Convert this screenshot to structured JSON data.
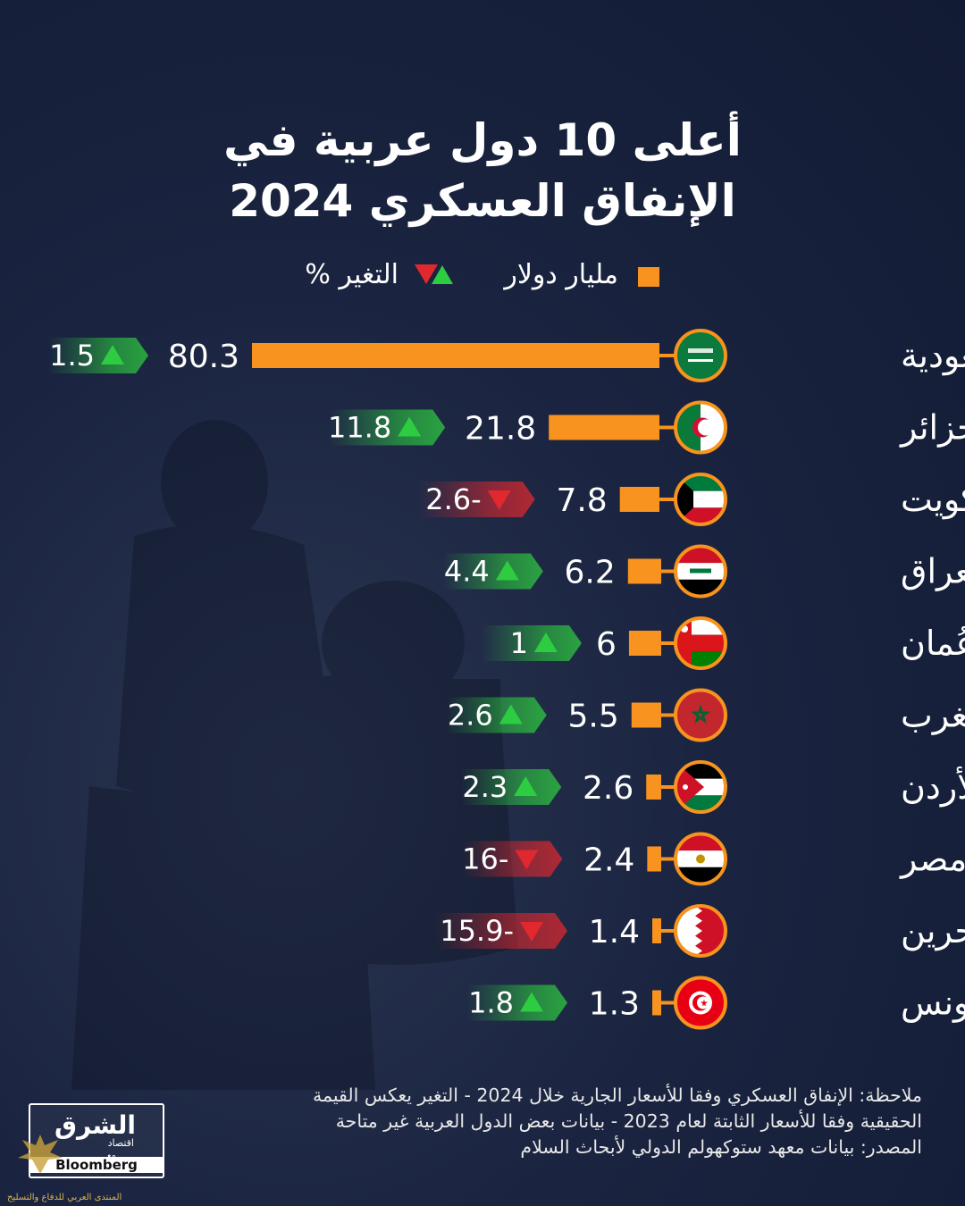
{
  "title_line1": "أعلى 10 دول عربية في",
  "title_line2": "الإنفاق العسكري 2024",
  "legend": {
    "spend_label": "مليار دولار",
    "change_label": "التغير %",
    "spend_color": "#f7931e",
    "up_color": "#2ecc40",
    "down_color": "#e0282e"
  },
  "chart_data": {
    "type": "bar",
    "orientation": "horizontal",
    "series": [
      {
        "name": "مليار دولار",
        "values": [
          80.3,
          21.8,
          7.8,
          6.2,
          6,
          5.5,
          2.6,
          2.4,
          1.4,
          1.3
        ]
      },
      {
        "name": "التغير %",
        "values": [
          1.5,
          11.8,
          -2.6,
          4.4,
          1,
          2.6,
          2.3,
          -16,
          -15.9,
          1.8
        ]
      }
    ],
    "rows": [
      {
        "country": "السعودية",
        "value": 80.3,
        "value_label": "80.3",
        "change": 1.5,
        "change_label": "1.5",
        "direction": "up",
        "flag": "saudi-flag-icon"
      },
      {
        "country": "الجزائر",
        "value": 21.8,
        "value_label": "21.8",
        "change": 11.8,
        "change_label": "11.8",
        "direction": "up",
        "flag": "algeria-flag-icon"
      },
      {
        "country": "الكويت",
        "value": 7.8,
        "value_label": "7.8",
        "change": -2.6,
        "change_label": "2.6-",
        "direction": "down",
        "flag": "kuwait-flag-icon"
      },
      {
        "country": "العراق",
        "value": 6.2,
        "value_label": "6.2",
        "change": 4.4,
        "change_label": "4.4",
        "direction": "up",
        "flag": "iraq-flag-icon"
      },
      {
        "country": "عُمان",
        "value": 6,
        "value_label": "6",
        "change": 1,
        "change_label": "1",
        "direction": "up",
        "flag": "oman-flag-icon"
      },
      {
        "country": "المغرب",
        "value": 5.5,
        "value_label": "5.5",
        "change": 2.6,
        "change_label": "2.6",
        "direction": "up",
        "flag": "morocco-flag-icon"
      },
      {
        "country": "الأردن",
        "value": 2.6,
        "value_label": "2.6",
        "change": 2.3,
        "change_label": "2.3",
        "direction": "up",
        "flag": "jordan-flag-icon"
      },
      {
        "country": "مصر",
        "value": 2.4,
        "value_label": "2.4",
        "change": -16,
        "change_label": "16-",
        "direction": "down",
        "flag": "egypt-flag-icon"
      },
      {
        "country": "البحرين",
        "value": 1.4,
        "value_label": "1.4",
        "change": -15.9,
        "change_label": "15.9-",
        "direction": "down",
        "flag": "bahrain-flag-icon"
      },
      {
        "country": "تونس",
        "value": 1.3,
        "value_label": "1.3",
        "change": 1.8,
        "change_label": "1.8",
        "direction": "up",
        "flag": "tunisia-flag-icon"
      }
    ],
    "grid": false,
    "legend_position": "top"
  },
  "notes": {
    "line1": "ملاحظة: الإنفاق العسكري وفقا للأسعار الجارية خلال 2024 - التغير يعكس القيمة",
    "line2": "الحقيقية وفقا للأسعار الثابتة لعام 2023 - بيانات بعض الدول العربية غير متاحة",
    "line3": "المصدر: بيانات معهد ستوكهولم الدولي لأبحاث السلام"
  },
  "logo": {
    "name": "الشرق",
    "sub": "اقتصاد",
    "with": "مع",
    "partner": "Bloomberg"
  },
  "watermark": "المنتدى العربي للدفاع والتسليح"
}
